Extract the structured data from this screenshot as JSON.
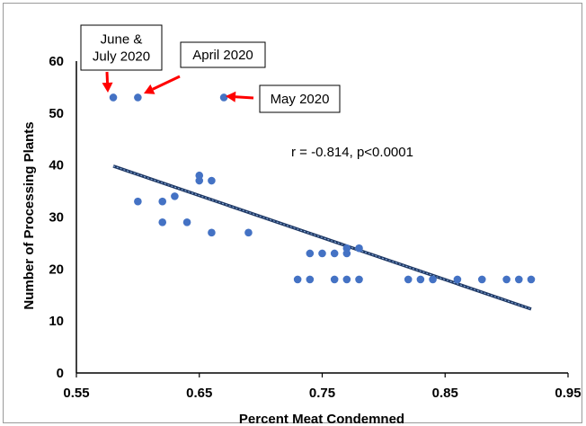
{
  "chart_data": {
    "type": "scatter",
    "xlabel": "Percent Meat Condemned",
    "ylabel": "Number of Processing Plants",
    "xlim": [
      0.55,
      0.95
    ],
    "ylim": [
      0,
      60
    ],
    "x_ticks": [
      "0.55",
      "0.65",
      "0.75",
      "0.85",
      "0.95"
    ],
    "y_ticks": [
      "0",
      "10",
      "20",
      "30",
      "40",
      "50",
      "60"
    ],
    "grid": false,
    "points": [
      {
        "x": 0.58,
        "y": 53
      },
      {
        "x": 0.6,
        "y": 53
      },
      {
        "x": 0.67,
        "y": 53
      },
      {
        "x": 0.6,
        "y": 33
      },
      {
        "x": 0.62,
        "y": 33
      },
      {
        "x": 0.62,
        "y": 29
      },
      {
        "x": 0.63,
        "y": 34
      },
      {
        "x": 0.64,
        "y": 29
      },
      {
        "x": 0.65,
        "y": 38
      },
      {
        "x": 0.65,
        "y": 37
      },
      {
        "x": 0.66,
        "y": 37
      },
      {
        "x": 0.66,
        "y": 27
      },
      {
        "x": 0.69,
        "y": 27
      },
      {
        "x": 0.73,
        "y": 18
      },
      {
        "x": 0.74,
        "y": 23
      },
      {
        "x": 0.74,
        "y": 18
      },
      {
        "x": 0.75,
        "y": 23
      },
      {
        "x": 0.76,
        "y": 23
      },
      {
        "x": 0.76,
        "y": 18
      },
      {
        "x": 0.77,
        "y": 24
      },
      {
        "x": 0.77,
        "y": 23
      },
      {
        "x": 0.77,
        "y": 18
      },
      {
        "x": 0.78,
        "y": 24
      },
      {
        "x": 0.78,
        "y": 18
      },
      {
        "x": 0.82,
        "y": 18
      },
      {
        "x": 0.83,
        "y": 18
      },
      {
        "x": 0.84,
        "y": 18
      },
      {
        "x": 0.86,
        "y": 18
      },
      {
        "x": 0.88,
        "y": 18
      },
      {
        "x": 0.9,
        "y": 18
      },
      {
        "x": 0.91,
        "y": 18
      },
      {
        "x": 0.92,
        "y": 18
      }
    ],
    "trendline": {
      "x": [
        0.58,
        0.92
      ],
      "y": [
        39.8,
        12.3
      ]
    },
    "annotations": [
      {
        "text_lines": [
          "June &",
          "July 2020"
        ],
        "target": {
          "x": 0.58,
          "y": 53
        }
      },
      {
        "text_lines": [
          "April 2020"
        ],
        "target": {
          "x": 0.6,
          "y": 53
        }
      },
      {
        "text_lines": [
          "May 2020"
        ],
        "target": {
          "x": 0.67,
          "y": 53
        }
      }
    ],
    "stat_label": "r = -0.814, p<0.0001",
    "colors": {
      "point": "#4472c4",
      "trendline": "#1f3864",
      "arrow": "#ff0000"
    }
  }
}
